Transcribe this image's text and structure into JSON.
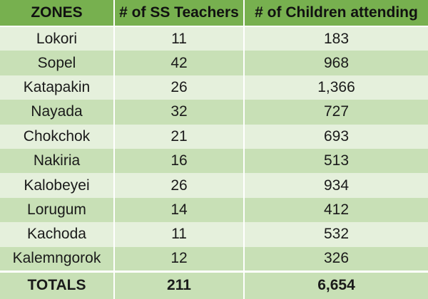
{
  "table": {
    "headers": [
      "ZONES",
      "# of SS Teachers",
      "# of Children attending"
    ],
    "rows": [
      [
        "Lokori",
        "11",
        "183"
      ],
      [
        "Sopel",
        "42",
        "968"
      ],
      [
        "Katapakin",
        "26",
        "1,366"
      ],
      [
        "Nayada",
        "32",
        "727"
      ],
      [
        "Chokchok",
        "21",
        "693"
      ],
      [
        "Nakiria",
        "16",
        "513"
      ],
      [
        "Kalobeyei",
        "26",
        "934"
      ],
      [
        "Lorugum",
        "14",
        "412"
      ],
      [
        "Kachoda",
        "11",
        "532"
      ],
      [
        "Kalemngorok",
        "12",
        "326"
      ]
    ],
    "totals": [
      "TOTALS",
      "211",
      "6,654"
    ]
  },
  "colors": {
    "header_bg": "#77b04f",
    "row_light": "#e5f0dc",
    "row_dark": "#c8e0b6"
  }
}
